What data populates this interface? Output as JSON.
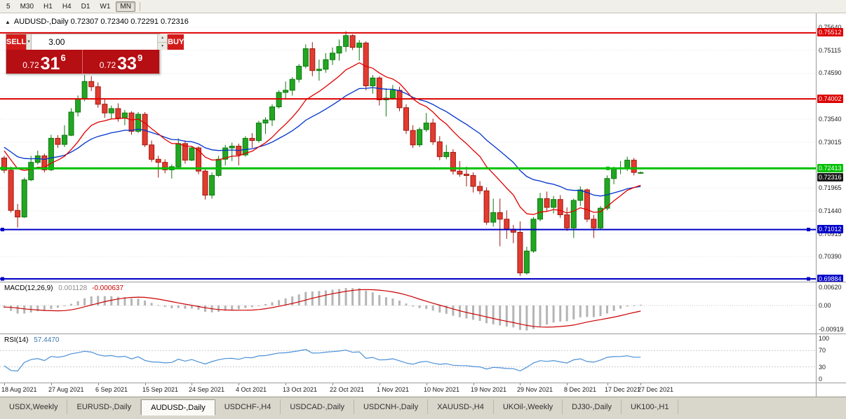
{
  "toolbar": {
    "periods": [
      "5",
      "M30",
      "H1",
      "H4",
      "D1",
      "W1",
      "MN"
    ],
    "active": "MN"
  },
  "icons": {
    "one_click_toggle": "▲",
    "dropdown_caret": "▼",
    "spinner_up": "▲",
    "spinner_down": "▼"
  },
  "header": {
    "title": "AUDUSD-,Daily 0.72307 0.72340 0.72291 0.72316"
  },
  "trade_panel": {
    "sell_label": "SELL",
    "buy_label": "BUY",
    "volume": "3.00",
    "sell_price": {
      "prefix": "0.72",
      "big": "31",
      "sup": "6"
    },
    "buy_price": {
      "prefix": "0.72",
      "big": "33",
      "sup": "9"
    }
  },
  "chart_data": {
    "type": "candlestick",
    "symbol": "AUDUSD-",
    "timeframe": "Daily",
    "ohlc": {
      "open": 0.72307,
      "high": 0.7234,
      "low": 0.72291,
      "close": 0.72316
    },
    "y_axis": {
      "price_top": 0.7596,
      "price_bottom": 0.6982,
      "tick_values": [
        0.7564,
        0.75115,
        0.7459,
        0.7354,
        0.73015,
        0.71965,
        0.7144,
        0.70915,
        0.7039
      ],
      "grid_start": 0.7564,
      "grid_step": 0.00525,
      "grid_count": 12
    },
    "x_axis": {
      "ticks": [
        {
          "i": 0,
          "label": "18 Aug 2021"
        },
        {
          "i": 7,
          "label": "27 Aug 2021"
        },
        {
          "i": 14,
          "label": "6 Sep 2021"
        },
        {
          "i": 21,
          "label": "15 Sep 2021"
        },
        {
          "i": 28,
          "label": "24 Sep 2021"
        },
        {
          "i": 35,
          "label": "4 Oct 2021"
        },
        {
          "i": 42,
          "label": "13 Oct 2021"
        },
        {
          "i": 49,
          "label": "22 Oct 2021"
        },
        {
          "i": 56,
          "label": "1 Nov 2021"
        },
        {
          "i": 63,
          "label": "10 Nov 2021"
        },
        {
          "i": 70,
          "label": "19 Nov 2021"
        },
        {
          "i": 77,
          "label": "29 Nov 2021"
        },
        {
          "i": 84,
          "label": "8 Dec 2021"
        },
        {
          "i": 90,
          "label": "17 Dec 2021"
        },
        {
          "i": 95,
          "label": "27 Dec 2021"
        }
      ]
    },
    "lines": [
      {
        "price": 0.75512,
        "label": "0.75512",
        "color": "#dd0000",
        "width": 2,
        "handles": []
      },
      {
        "price": 0.74002,
        "label": "0.74002",
        "color": "#dd0000",
        "width": 2,
        "handles": []
      },
      {
        "price": 0.72413,
        "label": "0.72413",
        "color": "#00c000",
        "width": 3,
        "handles": [
          3,
          866
        ]
      },
      {
        "price": 0.71012,
        "label": "0.71012",
        "color": "#0000c8",
        "width": 2,
        "handles": [
          3,
          1152
        ]
      },
      {
        "price": 0.69884,
        "label": "0.69884",
        "color": "#0000c8",
        "width": 2,
        "handles": [
          3,
          1152
        ]
      }
    ],
    "bid_marker": {
      "price": 0.72316,
      "text": "0.72316"
    },
    "overlays": {
      "ma_fast": {
        "type": "EMA",
        "period": 12,
        "color": "#e10000"
      },
      "ma_slow": {
        "type": "EMA",
        "period": 26,
        "color": "#0033cc"
      }
    },
    "colors": {
      "up": "#23a623",
      "up_border": "#0c7a0c",
      "down": "#e23b30",
      "down_border": "#a01910",
      "grid": "#e4e4e4",
      "background": "#ffffff"
    },
    "prehistory_closes": [
      0.732,
      0.731,
      0.7295,
      0.7285,
      0.73,
      0.7315,
      0.7305,
      0.729,
      0.728,
      0.7295,
      0.731,
      0.73,
      0.7288,
      0.7278,
      0.729,
      0.7302,
      0.7295,
      0.7285,
      0.7275,
      0.7288,
      0.7298,
      0.729,
      0.7282,
      0.7292,
      0.73,
      0.7294,
      0.7286,
      0.728,
      0.7286,
      0.7292
    ],
    "candles": [
      [
        0.7265,
        0.727,
        0.723,
        0.7237
      ],
      [
        0.7237,
        0.7245,
        0.714,
        0.7145
      ],
      [
        0.7145,
        0.716,
        0.7106,
        0.713
      ],
      [
        0.713,
        0.722,
        0.7128,
        0.7215
      ],
      [
        0.7215,
        0.727,
        0.7212,
        0.7255
      ],
      [
        0.7255,
        0.7282,
        0.725,
        0.727
      ],
      [
        0.727,
        0.7275,
        0.7232,
        0.7238
      ],
      [
        0.7238,
        0.7318,
        0.7235,
        0.731
      ],
      [
        0.731,
        0.7317,
        0.7288,
        0.7296
      ],
      [
        0.7296,
        0.734,
        0.729,
        0.7317
      ],
      [
        0.7317,
        0.7379,
        0.7315,
        0.737
      ],
      [
        0.737,
        0.7408,
        0.736,
        0.74
      ],
      [
        0.74,
        0.7455,
        0.7395,
        0.744
      ],
      [
        0.744,
        0.7452,
        0.7418,
        0.7428
      ],
      [
        0.7428,
        0.7438,
        0.738,
        0.7388
      ],
      [
        0.7388,
        0.74,
        0.7357,
        0.7368
      ],
      [
        0.7368,
        0.7385,
        0.7355,
        0.7378
      ],
      [
        0.7378,
        0.739,
        0.7348,
        0.7356
      ],
      [
        0.7356,
        0.7375,
        0.734,
        0.7368
      ],
      [
        0.7368,
        0.7372,
        0.7318,
        0.7326
      ],
      [
        0.7326,
        0.737,
        0.7322,
        0.7365
      ],
      [
        0.7365,
        0.737,
        0.729,
        0.7295
      ],
      [
        0.7295,
        0.7305,
        0.7256,
        0.7262
      ],
      [
        0.7262,
        0.727,
        0.722,
        0.7255
      ],
      [
        0.7255,
        0.7262,
        0.723,
        0.7238
      ],
      [
        0.7238,
        0.725,
        0.7218,
        0.7245
      ],
      [
        0.7245,
        0.731,
        0.7242,
        0.7298
      ],
      [
        0.7298,
        0.7305,
        0.7252,
        0.726
      ],
      [
        0.726,
        0.7292,
        0.7258,
        0.7288
      ],
      [
        0.7288,
        0.7292,
        0.7228,
        0.7235
      ],
      [
        0.7235,
        0.7242,
        0.717,
        0.718
      ],
      [
        0.718,
        0.7232,
        0.7172,
        0.7225
      ],
      [
        0.7225,
        0.727,
        0.7222,
        0.7262
      ],
      [
        0.7262,
        0.7295,
        0.7248,
        0.7288
      ],
      [
        0.7288,
        0.73,
        0.7258,
        0.7292
      ],
      [
        0.7292,
        0.7298,
        0.7248,
        0.7272
      ],
      [
        0.7272,
        0.7315,
        0.7268,
        0.731
      ],
      [
        0.731,
        0.7322,
        0.7288,
        0.7305
      ],
      [
        0.7305,
        0.735,
        0.73,
        0.7345
      ],
      [
        0.7345,
        0.7358,
        0.732,
        0.7352
      ],
      [
        0.7352,
        0.7388,
        0.7338,
        0.7382
      ],
      [
        0.7382,
        0.742,
        0.7378,
        0.7415
      ],
      [
        0.7415,
        0.744,
        0.74,
        0.742
      ],
      [
        0.742,
        0.745,
        0.7408,
        0.7445
      ],
      [
        0.7445,
        0.748,
        0.7438,
        0.7475
      ],
      [
        0.7475,
        0.7525,
        0.747,
        0.7515
      ],
      [
        0.7515,
        0.753,
        0.7452,
        0.7465
      ],
      [
        0.7465,
        0.749,
        0.7442,
        0.7468
      ],
      [
        0.7468,
        0.7505,
        0.746,
        0.749
      ],
      [
        0.749,
        0.7518,
        0.7478,
        0.7505
      ],
      [
        0.7505,
        0.7536,
        0.7488,
        0.752
      ],
      [
        0.752,
        0.7555,
        0.7508,
        0.7545
      ],
      [
        0.7545,
        0.7548,
        0.7512,
        0.7518
      ],
      [
        0.7518,
        0.7535,
        0.7488,
        0.7528
      ],
      [
        0.7528,
        0.7532,
        0.742,
        0.743
      ],
      [
        0.743,
        0.7455,
        0.7412,
        0.7448
      ],
      [
        0.7448,
        0.7452,
        0.7385,
        0.7398
      ],
      [
        0.7398,
        0.7425,
        0.736,
        0.7402
      ],
      [
        0.7402,
        0.7432,
        0.7398,
        0.742
      ],
      [
        0.742,
        0.7428,
        0.7372,
        0.738
      ],
      [
        0.738,
        0.7388,
        0.732,
        0.7328
      ],
      [
        0.7328,
        0.734,
        0.7288,
        0.7295
      ],
      [
        0.7295,
        0.7335,
        0.729,
        0.733
      ],
      [
        0.733,
        0.7368,
        0.7325,
        0.7345
      ],
      [
        0.7345,
        0.7355,
        0.7295,
        0.7302
      ],
      [
        0.7302,
        0.7315,
        0.726,
        0.7268
      ],
      [
        0.7268,
        0.7295,
        0.7262,
        0.7278
      ],
      [
        0.7278,
        0.7285,
        0.7227,
        0.7235
      ],
      [
        0.7235,
        0.7258,
        0.7222,
        0.7228
      ],
      [
        0.7228,
        0.7245,
        0.72,
        0.7225
      ],
      [
        0.7225,
        0.7232,
        0.7186,
        0.72
      ],
      [
        0.72,
        0.7212,
        0.7182,
        0.719
      ],
      [
        0.719,
        0.7198,
        0.7112,
        0.7118
      ],
      [
        0.7118,
        0.7172,
        0.7108,
        0.714
      ],
      [
        0.714,
        0.7172,
        0.7063,
        0.7125
      ],
      [
        0.7125,
        0.7145,
        0.708,
        0.7102
      ],
      [
        0.7102,
        0.7112,
        0.707,
        0.7095
      ],
      [
        0.7095,
        0.712,
        0.6995,
        0.7002
      ],
      [
        0.7002,
        0.7062,
        0.6998,
        0.7052
      ],
      [
        0.7052,
        0.713,
        0.7048,
        0.7125
      ],
      [
        0.7125,
        0.7185,
        0.712,
        0.7172
      ],
      [
        0.7172,
        0.7188,
        0.7142,
        0.7152
      ],
      [
        0.7152,
        0.7178,
        0.7138,
        0.717
      ],
      [
        0.717,
        0.718,
        0.7128,
        0.7135
      ],
      [
        0.7135,
        0.7152,
        0.7098,
        0.7105
      ],
      [
        0.7105,
        0.7172,
        0.7082,
        0.7168
      ],
      [
        0.7168,
        0.72,
        0.7155,
        0.7192
      ],
      [
        0.7192,
        0.7195,
        0.7118,
        0.7125
      ],
      [
        0.7125,
        0.7135,
        0.7082,
        0.7105
      ],
      [
        0.7105,
        0.7155,
        0.71,
        0.715
      ],
      [
        0.715,
        0.7225,
        0.7145,
        0.7218
      ],
      [
        0.7218,
        0.7245,
        0.7205,
        0.724
      ],
      [
        0.724,
        0.7258,
        0.7228,
        0.7242
      ],
      [
        0.7242,
        0.7268,
        0.7235,
        0.726
      ],
      [
        0.726,
        0.7265,
        0.7225,
        0.7232
      ],
      [
        0.72307,
        0.7234,
        0.72291,
        0.72316
      ]
    ],
    "indicators": {
      "macd": {
        "label": "MACD(12,26,9)",
        "value_main": "0.001128",
        "value_signal": "-0.000637",
        "axis_labels": [
          {
            "text": "0.00620",
            "value": 0.0062
          },
          {
            "text": "0.00",
            "value": 0
          },
          {
            "text": "-0.00919",
            "value": -0.00919
          }
        ],
        "histogram_color": "#b5b5b5",
        "signal_color": "#cc0000"
      },
      "rsi": {
        "label": "RSI(14)",
        "value": "57.4470",
        "levels": [
          100,
          70,
          30,
          0
        ],
        "line_color": "#4a90d9"
      }
    }
  },
  "tabs": {
    "items": [
      "USDX,Weekly",
      "EURUSD-,Daily",
      "AUDUSD-,Daily",
      "USDCHF-,H4",
      "USDCAD-,Daily",
      "USDCNH-,Daily",
      "XAUUSD-,H4",
      "UKOil-,Weekly",
      "DJ30-,Daily",
      "UK100-,H1"
    ],
    "active": "AUDUSD-,Daily"
  }
}
